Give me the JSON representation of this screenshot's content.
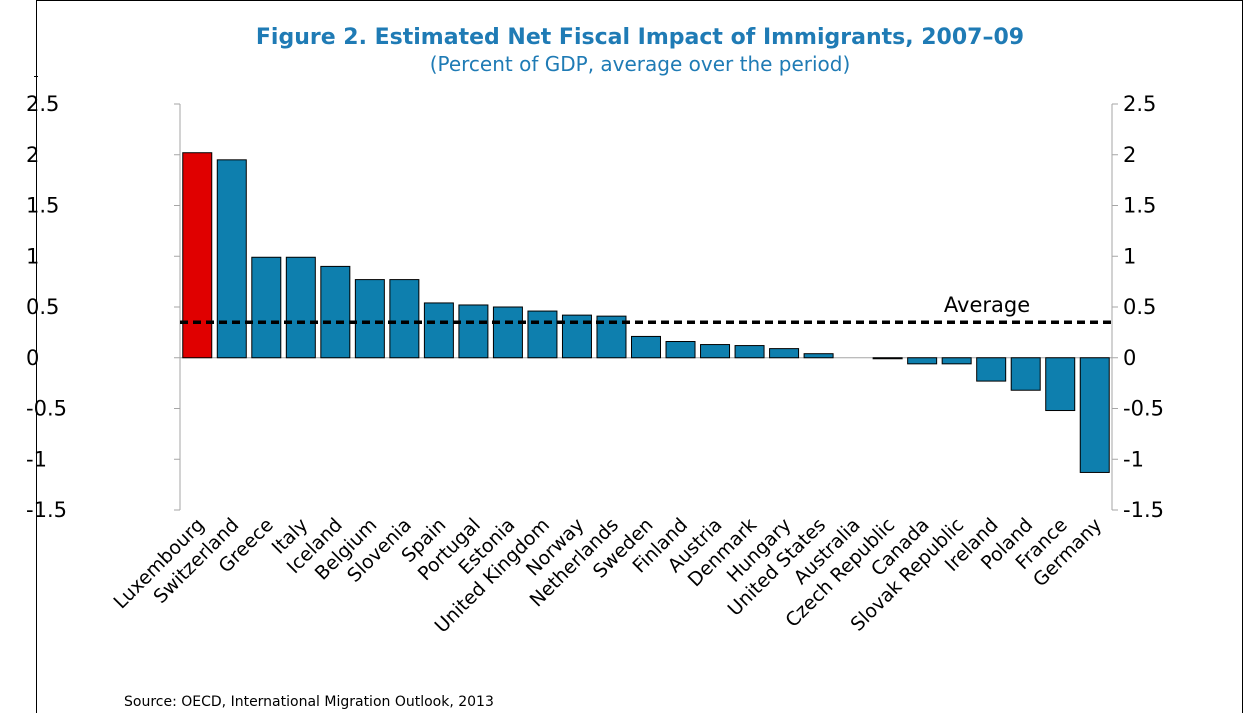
{
  "chart_data": {
    "type": "bar",
    "title": "Figure 2. Estimated Net Fiscal Impact of Immigrants, 2007–09",
    "subtitle": "(Percent of GDP, average over the period)",
    "categories": [
      "Luxembourg",
      "Switzerland",
      "Greece",
      "Italy",
      "Iceland",
      "Belgium",
      "Slovenia",
      "Spain",
      "Portugal",
      "Estonia",
      "United Kingdom",
      "Norway",
      "Netherlands",
      "Sweden",
      "Finland",
      "Austria",
      "Denmark",
      "Hungary",
      "United States",
      "Australia",
      "Czech Republic",
      "Canada",
      "Slovak Republic",
      "Ireland",
      "Poland",
      "France",
      "Germany"
    ],
    "values": [
      2.02,
      1.95,
      0.99,
      0.99,
      0.9,
      0.77,
      0.77,
      0.54,
      0.52,
      0.5,
      0.46,
      0.42,
      0.41,
      0.21,
      0.16,
      0.13,
      0.12,
      0.09,
      0.04,
      0.0,
      -0.01,
      -0.06,
      -0.06,
      -0.23,
      -0.32,
      -0.52,
      -1.13
    ],
    "highlight": {
      "category": "Luxembourg",
      "color": "#e00000"
    },
    "bar_color": "#0e7fae",
    "average": {
      "value": 0.35,
      "label": "Average"
    },
    "ylim": [
      -1.5,
      2.5
    ],
    "yticks": [
      "2.5",
      "2",
      "1.5",
      "1",
      "0.5",
      "0",
      "-0.5",
      "-1",
      "-1.5"
    ],
    "ytick_values": [
      2.5,
      2,
      1.5,
      1,
      0.5,
      0,
      -0.5,
      -1,
      -1.5
    ],
    "xlabel": "",
    "ylabel": "",
    "grid": false,
    "source": "Source: OECD, International Migration Outlook, 2013"
  }
}
